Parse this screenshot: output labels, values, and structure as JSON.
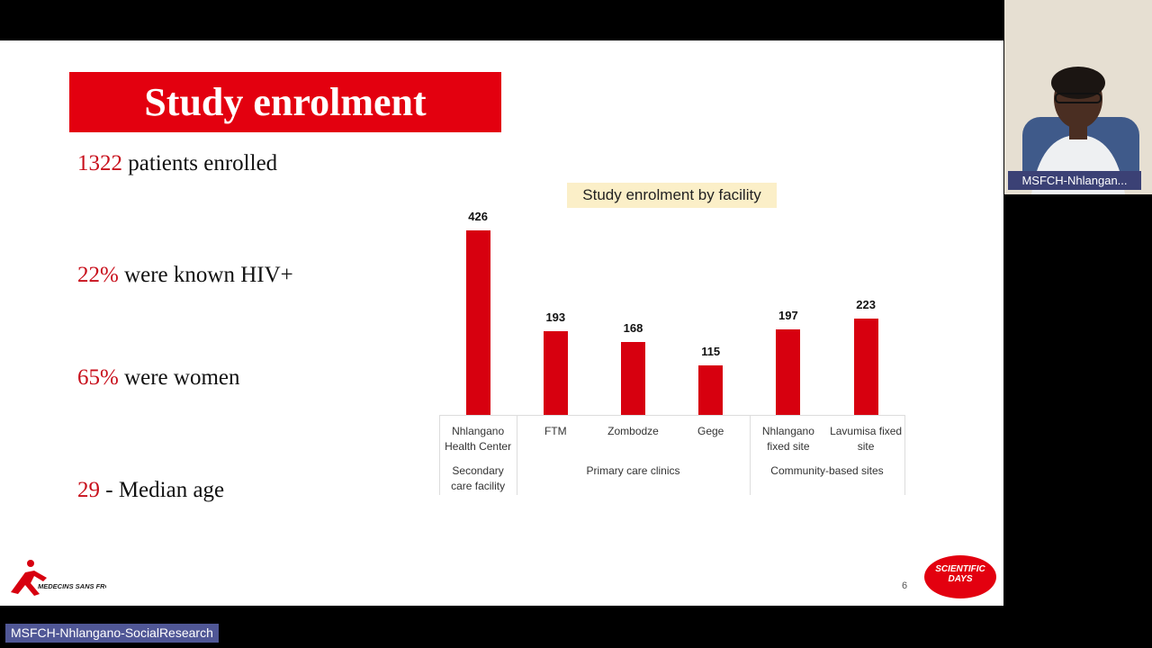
{
  "slide": {
    "title": "Study enrolment",
    "stats": [
      {
        "figure": "1322",
        "text": "patients enrolled"
      },
      {
        "figure": "22%",
        "text": "were known HIV+"
      },
      {
        "figure": "65%",
        "text": "were women"
      },
      {
        "figure": "29",
        "text": "- Median age"
      }
    ],
    "page_number": "6",
    "logo_left": "MEDECINS SANS FRONTIERES",
    "logo_right": "SCIENTIFIC DAYS"
  },
  "chart_data": {
    "type": "bar",
    "title": "Study enrolment by facility",
    "categories": [
      "Nhlangano Health Center",
      "FTM",
      "Zombodze",
      "Gege",
      "Nhlangano fixed site",
      "Lavumisa fixed site"
    ],
    "values": [
      426,
      193,
      168,
      115,
      197,
      223
    ],
    "color": "#d7000f",
    "groups": [
      "Secondary care facility",
      "Primary care clinics",
      "Community-based sites"
    ]
  },
  "call": {
    "participant_tile_name": "MSFCH-Nhlangan...",
    "presenter_name": "MSFCH-Nhlangano-SocialResearch"
  }
}
